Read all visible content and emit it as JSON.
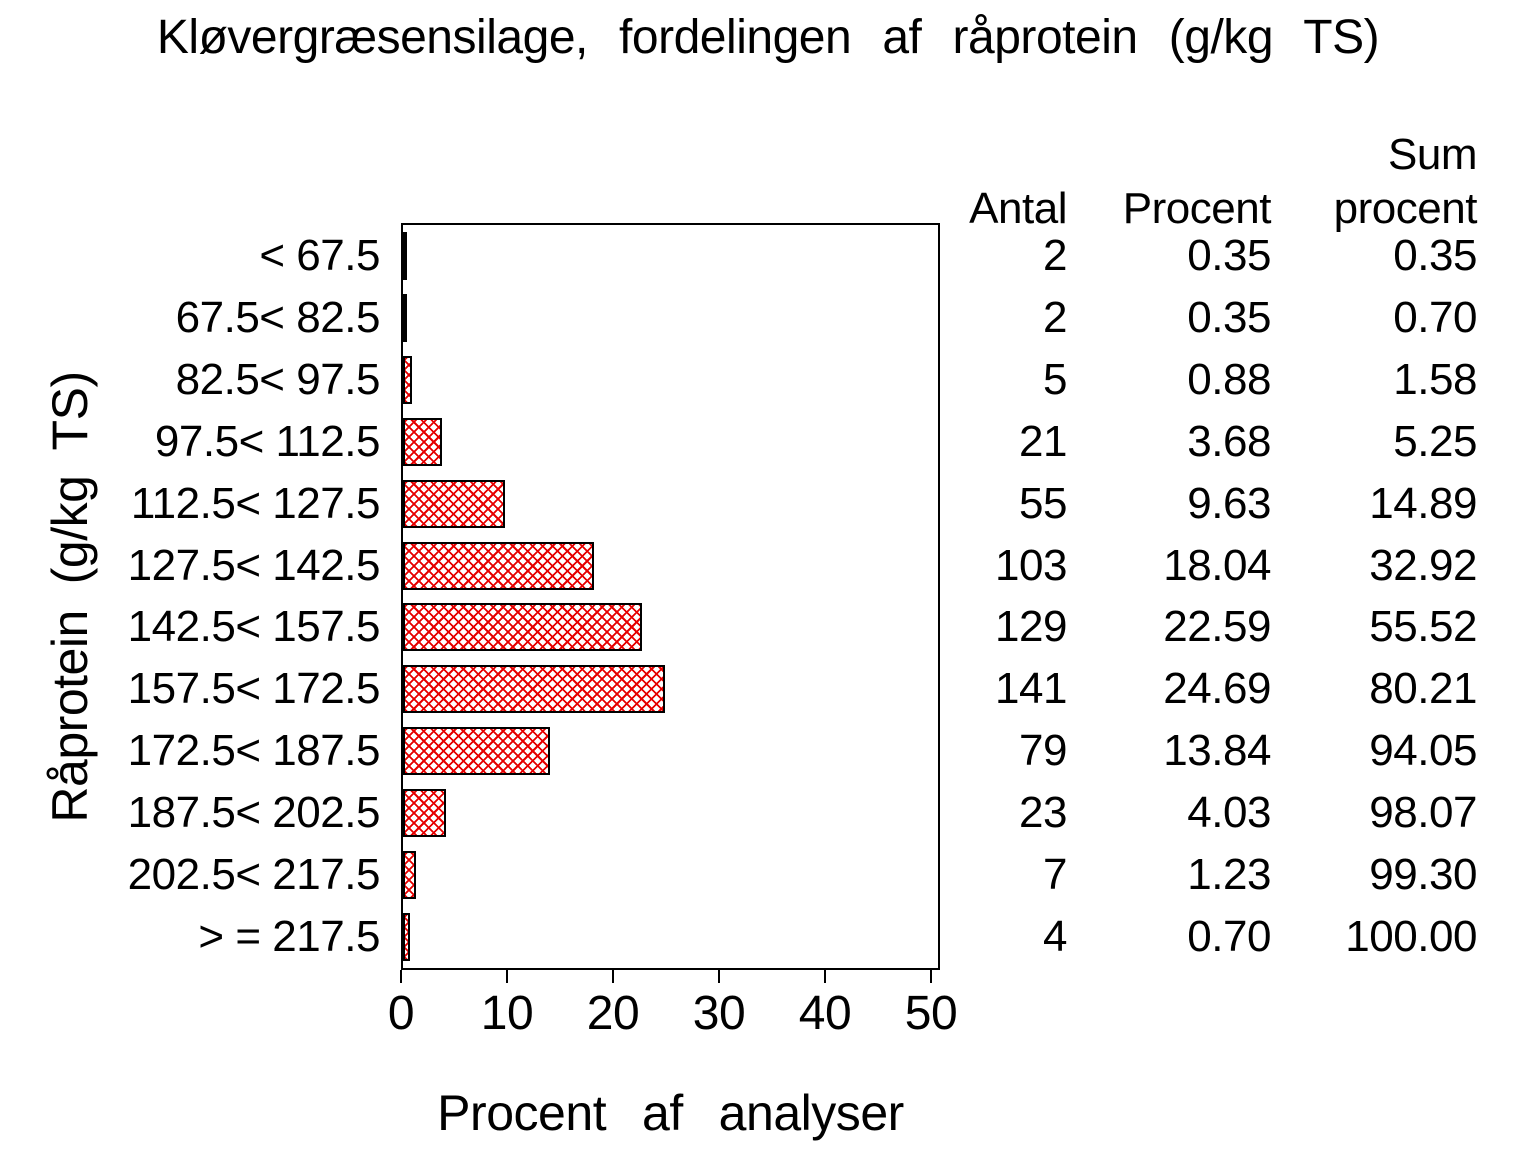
{
  "chart_data": {
    "type": "bar",
    "orientation": "horizontal",
    "title": "Kløvergræsensilage, fordelingen af råprotein (g/kg TS)",
    "xlabel": "Procent af analyser",
    "ylabel": "Råprotein (g/kg TS)",
    "categories": [
      "< 67.5",
      "67.5< 82.5",
      "82.5< 97.5",
      "97.5< 112.5",
      "112.5< 127.5",
      "127.5< 142.5",
      "142.5< 157.5",
      "157.5< 172.5",
      "172.5< 187.5",
      "187.5< 202.5",
      "202.5< 217.5",
      "> = 217.5"
    ],
    "values": [
      0.35,
      0.35,
      0.88,
      3.68,
      9.63,
      18.04,
      22.59,
      24.69,
      13.84,
      4.03,
      1.23,
      0.7
    ],
    "counts": [
      2,
      2,
      5,
      21,
      55,
      103,
      129,
      141,
      79,
      23,
      7,
      4
    ],
    "cum_percent": [
      0.35,
      0.7,
      1.58,
      5.25,
      14.89,
      32.92,
      55.52,
      80.21,
      94.05,
      98.07,
      99.3,
      100.0
    ],
    "x_ticks": [
      0,
      10,
      20,
      30,
      40,
      50
    ],
    "xlim": [
      0,
      50.8
    ],
    "grid": false,
    "legend": "none",
    "bar_fill_pattern": "red-crosshatch",
    "bar_pattern_color": "#e60000",
    "bar_outline_color": "#000000",
    "background": "#ffffff",
    "text_color": "#000000"
  },
  "table": {
    "headers": {
      "antal": "Antal",
      "procent": "Procent",
      "sum_top": "Sum",
      "sum_bottom": "procent"
    },
    "antal": [
      "2",
      "2",
      "5",
      "21",
      "55",
      "103",
      "129",
      "141",
      "79",
      "23",
      "7",
      "4"
    ],
    "procent": [
      "0.35",
      "0.35",
      "0.88",
      "3.68",
      "9.63",
      "18.04",
      "22.59",
      "24.69",
      "13.84",
      "4.03",
      "1.23",
      "0.70"
    ],
    "sum_procent": [
      "0.35",
      "0.70",
      "1.58",
      "5.25",
      "14.89",
      "32.92",
      "55.52",
      "80.21",
      "94.05",
      "98.07",
      "99.30",
      "100.00"
    ]
  }
}
